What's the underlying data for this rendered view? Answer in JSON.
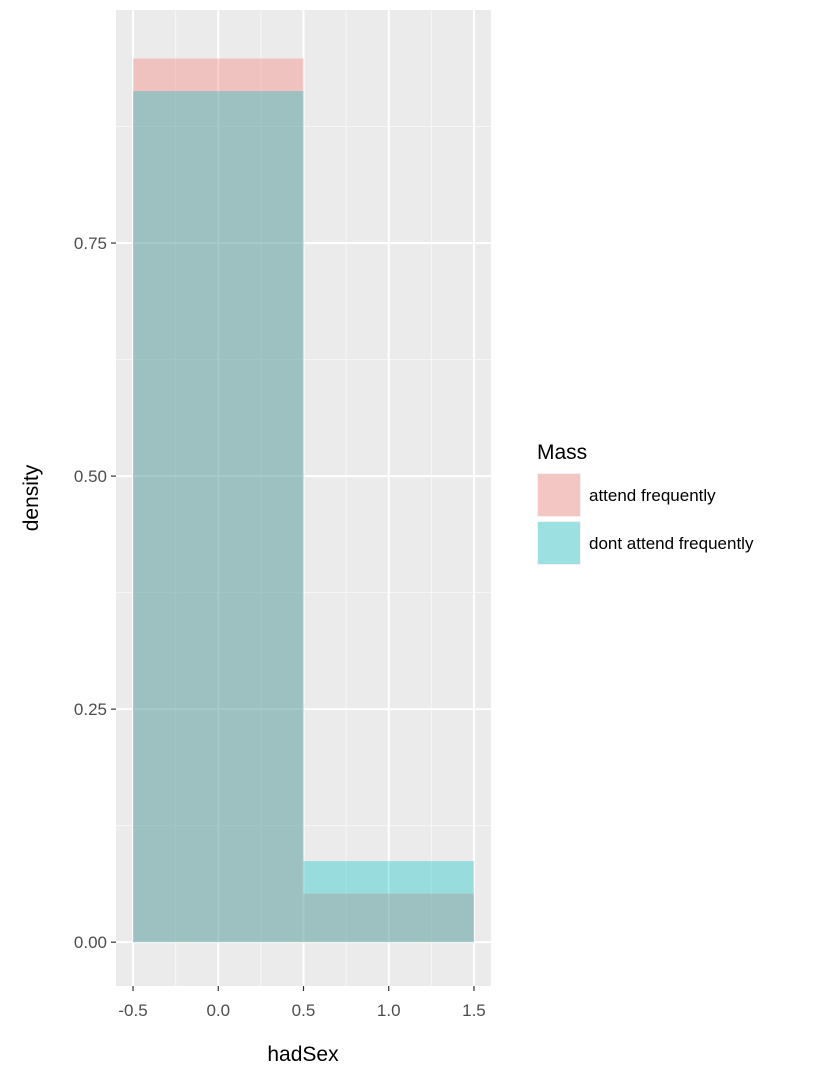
{
  "chart_data": {
    "type": "histogram",
    "xlabel": "hadSex",
    "ylabel": "density",
    "xlim": [
      -0.6,
      1.6
    ],
    "ylim": [
      -0.047,
      1.0
    ],
    "x_ticks": [
      -0.5,
      0.0,
      0.5,
      1.0,
      1.5
    ],
    "x_tick_labels": [
      "-0.5",
      "0.0",
      "0.5",
      "1.0",
      "1.5"
    ],
    "y_ticks": [
      0.0,
      0.25,
      0.5,
      0.75
    ],
    "y_tick_labels": [
      "0.00",
      "0.25",
      "0.50",
      "0.75"
    ],
    "grid": true,
    "legend": {
      "title": "Mass",
      "position": "right"
    },
    "bins": [
      [
        -0.5,
        0.5
      ],
      [
        0.5,
        1.5
      ]
    ],
    "series": [
      {
        "name": "attend frequently",
        "color": "#F8766D",
        "values": [
          0.948,
          0.052
        ]
      },
      {
        "name": "dont attend frequently",
        "color": "#00BFC4",
        "values": [
          0.913,
          0.087
        ]
      }
    ]
  }
}
